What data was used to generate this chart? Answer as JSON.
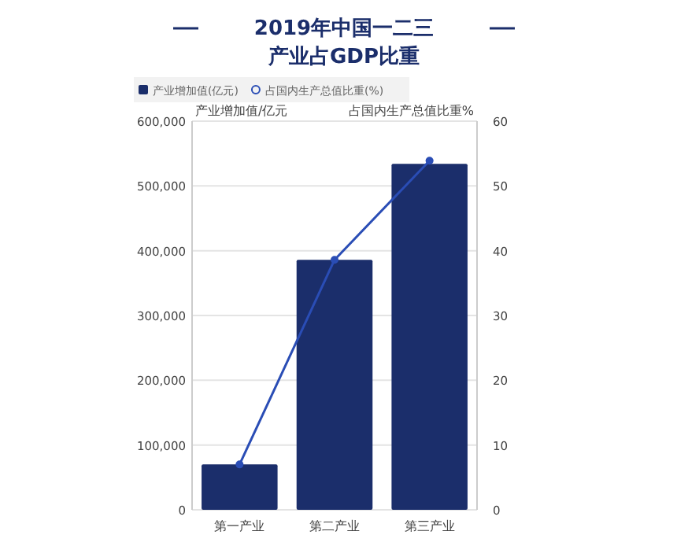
{
  "chart_data": {
    "type": "bar",
    "title": "2019年中国一二三产业占GDP比重",
    "categories": [
      "第一产业",
      "第二产业",
      "第三产业"
    ],
    "series": [
      {
        "name": "产业增加值(亿元)",
        "color": "#1b2e6b",
        "values": [
          70000,
          386000,
          534000
        ]
      },
      {
        "name": "占国内生产总值比重(%)",
        "type": "line",
        "axis": "y2",
        "color": "#2a4db5",
        "values": [
          7,
          38.6,
          53.9
        ]
      }
    ],
    "ylabel": "产业增加值/亿元",
    "y2label": "占国内生产总值比重%",
    "ylim": [
      0,
      600000
    ],
    "yticks": [
      {
        "value": 0,
        "label": "0"
      },
      {
        "value": 100000,
        "label": "100,000"
      },
      {
        "value": 200000,
        "label": "200,000"
      },
      {
        "value": 300000,
        "label": "300,000"
      },
      {
        "value": 400000,
        "label": "400,000"
      },
      {
        "value": 500000,
        "label": "500,000"
      },
      {
        "value": 600000,
        "label": "600,000"
      }
    ],
    "y2lim": [
      0,
      60
    ],
    "y2ticks": [
      0,
      10,
      20,
      30,
      40,
      50,
      60
    ],
    "grid": "y",
    "legend": "top left",
    "marker": "circle"
  }
}
